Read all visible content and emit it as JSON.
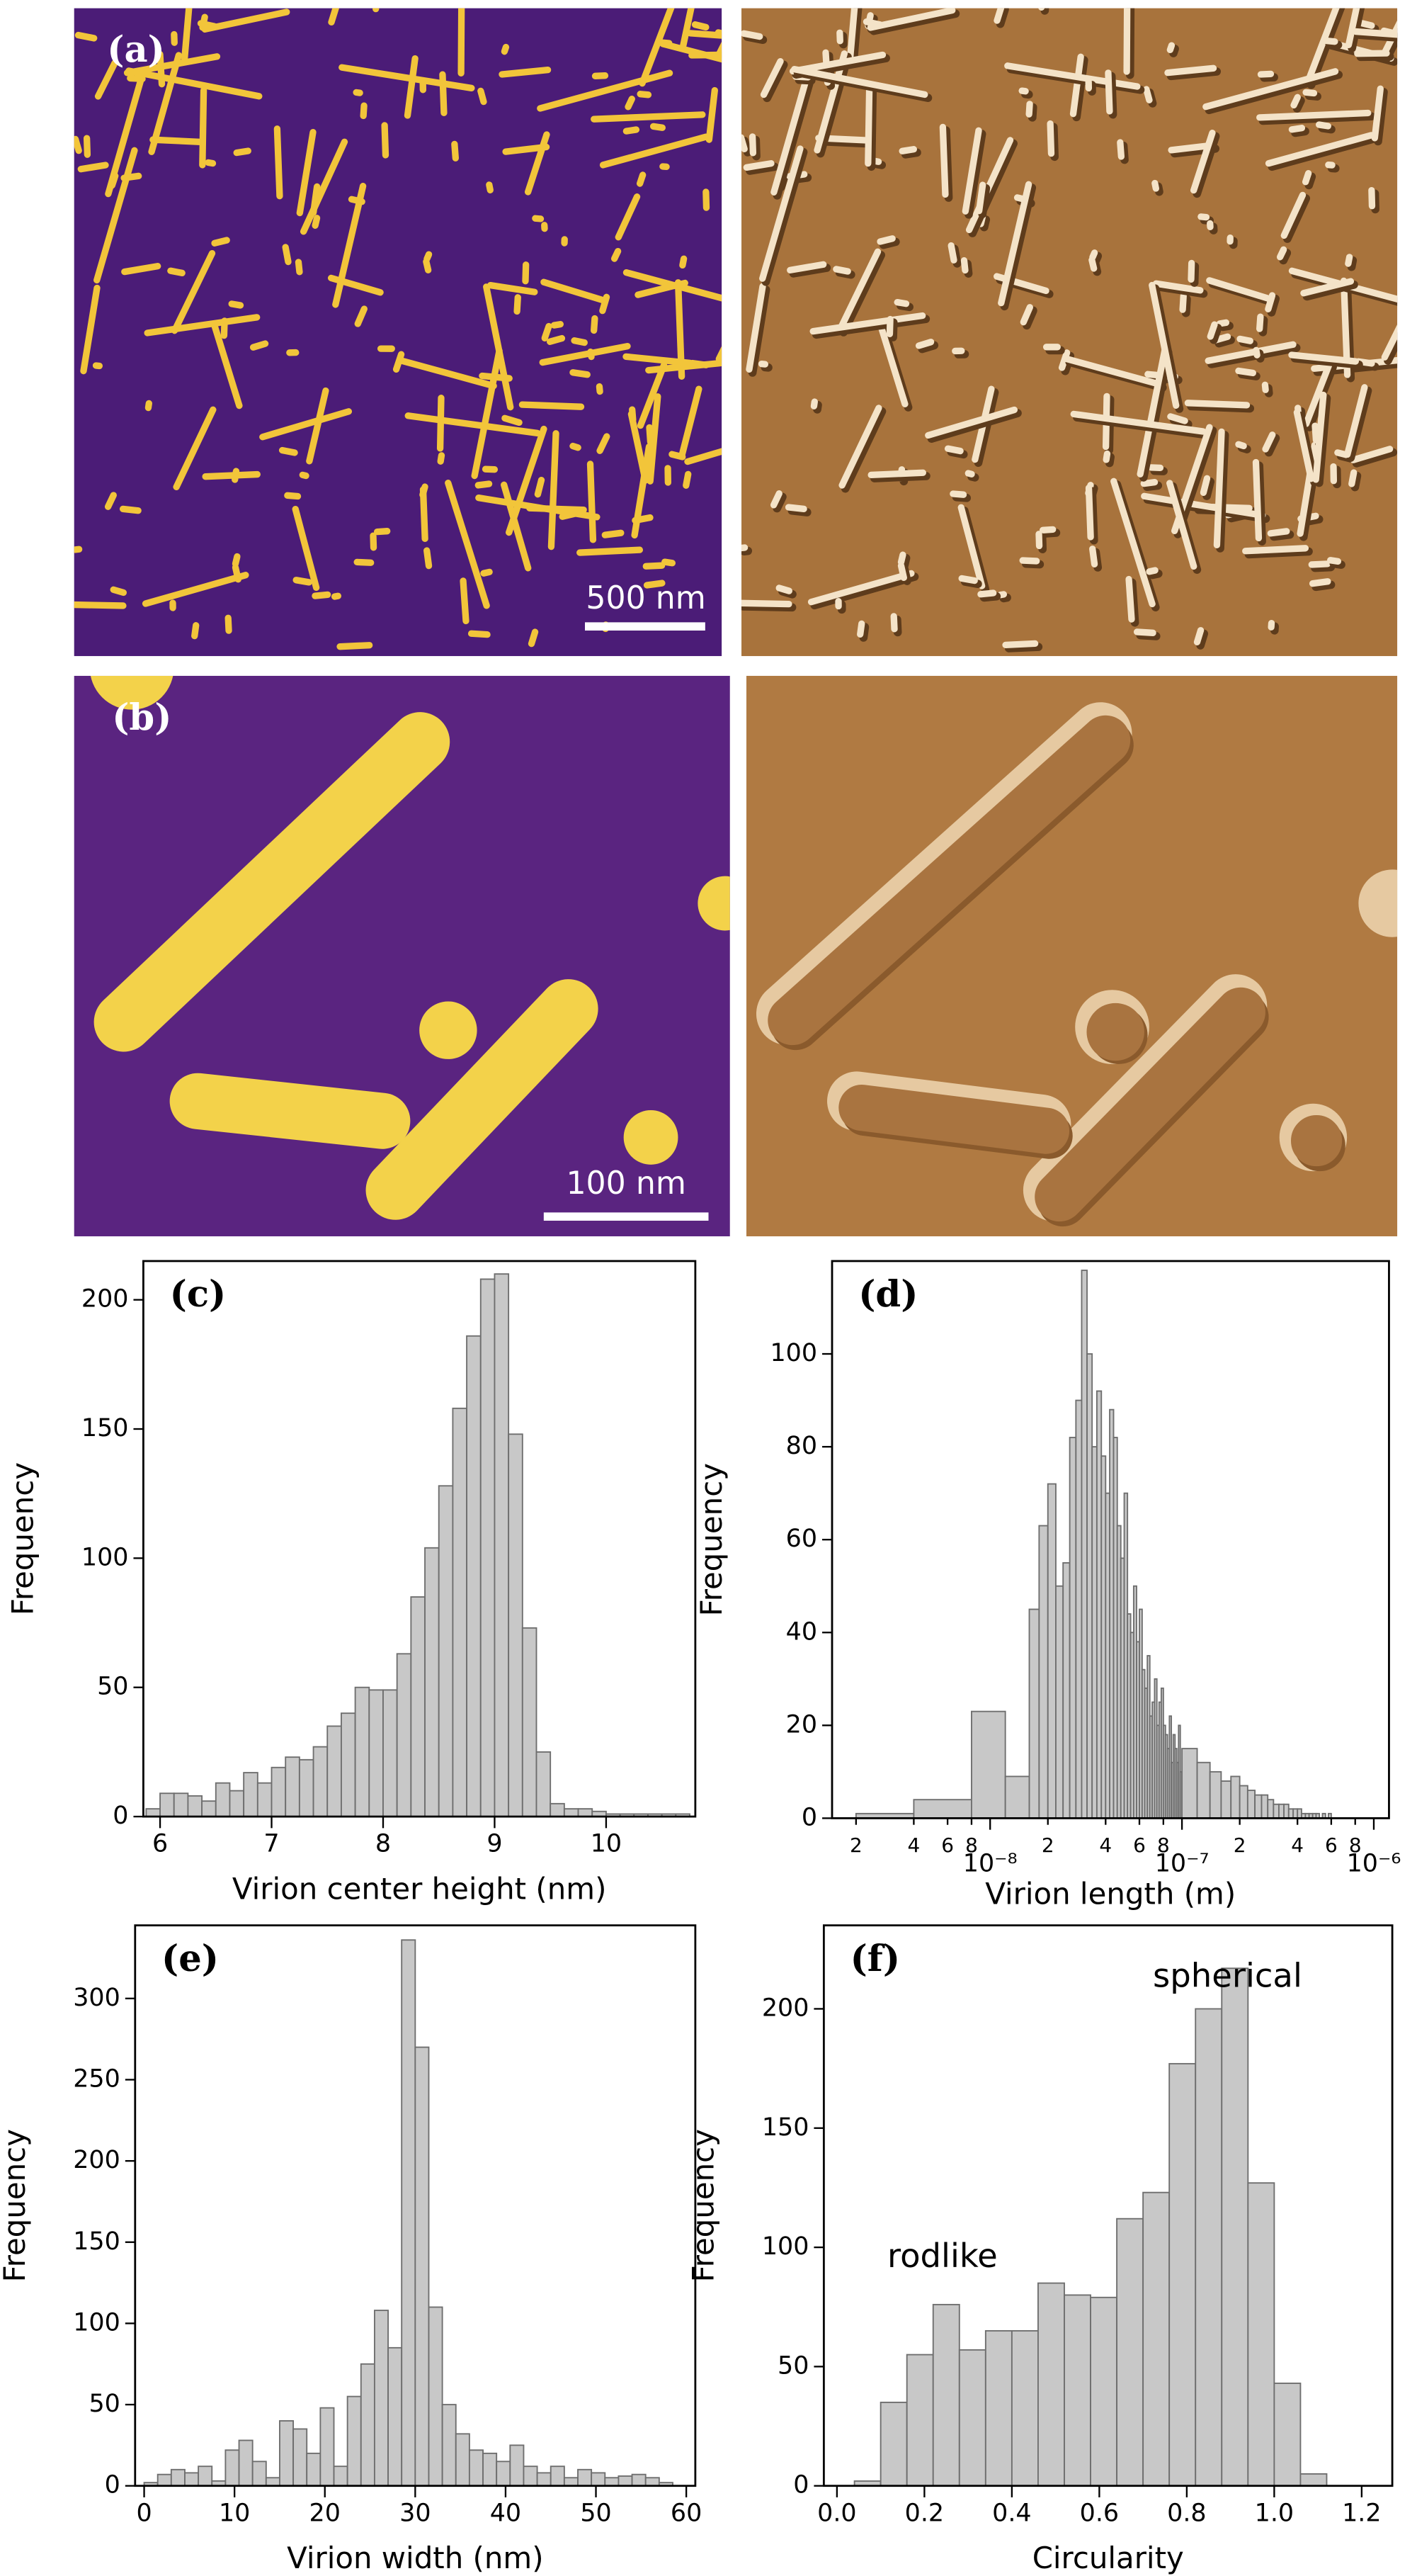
{
  "images": [
    {
      "label": "(a)",
      "scale_bar": "500 nm"
    },
    {
      "label": "(b)",
      "scale_bar": "100 nm"
    }
  ],
  "chart_data": [
    {
      "type": "histogram",
      "title": "(c)",
      "xlabel": "Virion center height (nm)",
      "ylabel": "Frequency",
      "color": "#c8c8c8",
      "edgecolor": "#6e6e6e",
      "bins": [
        5.875,
        6.0,
        6.125,
        6.25,
        6.375,
        6.5,
        6.625,
        6.75,
        6.875,
        7.0,
        7.125,
        7.25,
        7.375,
        7.5,
        7.625,
        7.75,
        7.875,
        8.0,
        8.125,
        8.25,
        8.375,
        8.5,
        8.625,
        8.75,
        8.875,
        9.0,
        9.125,
        9.25,
        9.375,
        9.5,
        9.625,
        9.75,
        9.875,
        10.0,
        10.125,
        10.25,
        10.375,
        10.5,
        10.625,
        10.75
      ],
      "values": [
        3,
        9,
        9,
        8,
        6,
        13,
        10,
        17,
        13,
        19,
        23,
        22,
        27,
        35,
        40,
        50,
        49,
        49,
        63,
        85,
        104,
        128,
        158,
        186,
        208,
        210,
        148,
        73,
        25,
        5,
        3,
        3,
        2,
        1,
        1,
        1,
        1,
        1,
        1
      ],
      "xlim": [
        5.85,
        10.8
      ],
      "xticks": [
        6,
        7,
        8,
        9,
        10
      ],
      "ylim": [
        0,
        215
      ],
      "yticks": [
        0,
        50,
        100,
        150,
        200
      ]
    },
    {
      "type": "histogram",
      "title": "(d)",
      "xlabel": "Virion length (m)",
      "ylabel": "Frequency",
      "color": "#c8c8c8",
      "edgecolor": "#6e6e6e",
      "xscale": "log",
      "bins": [
        2e-09,
        4e-09,
        8e-09,
        1.2e-08,
        1.6e-08,
        1.8e-08,
        2e-08,
        2.2e-08,
        2.4e-08,
        2.6e-08,
        2.8e-08,
        3e-08,
        3.2e-08,
        3.4e-08,
        3.6e-08,
        3.8e-08,
        4e-08,
        4.2e-08,
        4.4e-08,
        4.6e-08,
        4.8e-08,
        5e-08,
        5.2e-08,
        5.4e-08,
        5.6e-08,
        5.8e-08,
        6e-08,
        6.2e-08,
        6.4e-08,
        6.6e-08,
        6.8e-08,
        7e-08,
        7.2e-08,
        7.4e-08,
        7.6e-08,
        7.8e-08,
        8e-08,
        8.2e-08,
        8.4e-08,
        8.6e-08,
        8.8e-08,
        9e-08,
        9.2e-08,
        9.4e-08,
        9.6e-08,
        9.8e-08,
        1e-07,
        1.2e-07,
        1.4e-07,
        1.6e-07,
        1.8e-07,
        2e-07,
        2.2e-07,
        2.4e-07,
        2.6e-07,
        2.8e-07,
        3e-07,
        3.2e-07,
        3.4e-07,
        3.6e-07,
        3.8e-07,
        4e-07,
        4.2e-07,
        4.4e-07,
        4.6e-07,
        4.8e-07,
        5e-07,
        5.2e-07,
        5.4e-07,
        5.6e-07,
        5.8e-07,
        6e-07
      ],
      "values": [
        1,
        4,
        23,
        9,
        45,
        63,
        72,
        50,
        55,
        82,
        90,
        118,
        100,
        80,
        92,
        78,
        70,
        88,
        82,
        63,
        56,
        70,
        44,
        40,
        50,
        38,
        45,
        32,
        28,
        35,
        22,
        25,
        30,
        20,
        25,
        28,
        20,
        18,
        15,
        22,
        12,
        18,
        15,
        12,
        20,
        10,
        15,
        12,
        10,
        8,
        9,
        7,
        6,
        5,
        5,
        4,
        3,
        3,
        3,
        2,
        2,
        2,
        1,
        1,
        1,
        1,
        1,
        0,
        1,
        0,
        1
      ],
      "xlim": [
        1.5e-09,
        1.2e-06
      ],
      "xticks": [
        {
          "value": 2e-09,
          "label": "2"
        },
        {
          "value": 4e-09,
          "label": "4"
        },
        {
          "value": 6e-09,
          "label": "6"
        },
        {
          "value": 8e-09,
          "label": "8"
        },
        {
          "value": 1e-08,
          "label": "10⁻⁸"
        },
        {
          "value": 2e-08,
          "label": "2"
        },
        {
          "value": 4e-08,
          "label": "4"
        },
        {
          "value": 6e-08,
          "label": "6"
        },
        {
          "value": 8e-08,
          "label": "8"
        },
        {
          "value": 1e-07,
          "label": "10⁻⁷"
        },
        {
          "value": 2e-07,
          "label": "2"
        },
        {
          "value": 4e-07,
          "label": "4"
        },
        {
          "value": 6e-07,
          "label": "6"
        },
        {
          "value": 8e-07,
          "label": "8"
        },
        {
          "value": 1e-06,
          "label": "10⁻⁶"
        }
      ],
      "ylim": [
        0,
        120
      ],
      "yticks": [
        0,
        20,
        40,
        60,
        80,
        100
      ]
    },
    {
      "type": "histogram",
      "title": "(e)",
      "xlabel": "Virion width (nm)",
      "ylabel": "Frequency",
      "color": "#c8c8c8",
      "edgecolor": "#6e6e6e",
      "bins": [
        0,
        1.5,
        3,
        4.5,
        6,
        7.5,
        9,
        10.5,
        12,
        13.5,
        15,
        16.5,
        18,
        19.5,
        21,
        22.5,
        24,
        25.5,
        27,
        28.5,
        30,
        31.5,
        33,
        34.5,
        36,
        37.5,
        39,
        40.5,
        42,
        43.5,
        45,
        46.5,
        48,
        49.5,
        51,
        52.5,
        54,
        55.5,
        57,
        58.5,
        60
      ],
      "values": [
        2,
        7,
        10,
        8,
        12,
        3,
        22,
        28,
        15,
        5,
        40,
        35,
        20,
        48,
        12,
        55,
        75,
        108,
        85,
        336,
        270,
        110,
        50,
        32,
        22,
        20,
        15,
        25,
        12,
        8,
        12,
        5,
        10,
        8,
        5,
        6,
        7,
        5,
        2,
        0
      ],
      "xlim": [
        -1,
        61
      ],
      "xticks": [
        0,
        10,
        20,
        30,
        40,
        50,
        60
      ],
      "ylim": [
        0,
        345
      ],
      "yticks": [
        0,
        50,
        100,
        150,
        200,
        250,
        300
      ]
    },
    {
      "type": "histogram",
      "title": "(f)",
      "xlabel": "Circularity",
      "ylabel": "Frequency",
      "color": "#c8c8c8",
      "edgecolor": "#6e6e6e",
      "annotations": [
        "spherical",
        "rodlike"
      ],
      "bins": [
        0.04,
        0.1,
        0.16,
        0.22,
        0.28,
        0.34,
        0.4,
        0.46,
        0.52,
        0.58,
        0.64,
        0.7,
        0.76,
        0.82,
        0.88,
        0.94,
        1.0,
        1.06,
        1.12
      ],
      "values": [
        2,
        35,
        55,
        76,
        57,
        65,
        65,
        85,
        80,
        79,
        112,
        123,
        177,
        200,
        217,
        127,
        43,
        5
      ],
      "xlim": [
        -0.03,
        1.27
      ],
      "xticks": [
        {
          "value": 0,
          "label": "0.0"
        },
        {
          "value": 0.2,
          "label": "0.2"
        },
        {
          "value": 0.4,
          "label": "0.4"
        },
        {
          "value": 0.6,
          "label": "0.6"
        },
        {
          "value": 0.8,
          "label": "0.8"
        },
        {
          "value": 1,
          "label": "1.0"
        },
        {
          "value": 1.2,
          "label": "1.2"
        }
      ],
      "ylim": [
        0,
        235
      ],
      "yticks": [
        0,
        50,
        100,
        150,
        200
      ]
    }
  ]
}
